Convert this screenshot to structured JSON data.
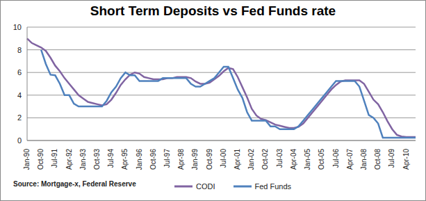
{
  "chart_data": {
    "type": "line",
    "title": "Short Term Deposits vs Fed Funds rate",
    "annotations": [
      "Source: Mortgage-x, Federal Reserve"
    ],
    "categories": [
      "Jan-90",
      null,
      null,
      "Oct-90",
      null,
      null,
      "Jul-91",
      null,
      null,
      "Apr-92",
      null,
      null,
      "Jan-93",
      null,
      null,
      "Oct-93",
      null,
      null,
      "Jul-94",
      null,
      null,
      "Apr-95",
      null,
      null,
      "Jan-96",
      null,
      null,
      "Oct-96",
      null,
      null,
      "Jul-97",
      null,
      null,
      "Apr-98",
      null,
      null,
      "Jan-99",
      null,
      null,
      "Oct-99",
      null,
      null,
      "Jul-00",
      null,
      null,
      "Apr-01",
      null,
      null,
      "Jan-02",
      null,
      null,
      "Oct-02",
      null,
      null,
      "Jul-03",
      null,
      null,
      "Apr-04",
      null,
      null,
      "Jan-05",
      null,
      null,
      "Oct-05",
      null,
      null,
      "Jul-06",
      null,
      null,
      "Apr-07",
      null,
      null,
      "Jan-08",
      null,
      null,
      "Oct-08",
      null,
      null,
      "Jul-09",
      null,
      null,
      "Apr-10",
      null,
      null
    ],
    "series": [
      {
        "name": "CODI",
        "color": "#8064a2",
        "values": [
          9.0,
          8.6,
          8.4,
          8.2,
          7.9,
          7.3,
          6.6,
          6.1,
          5.5,
          5.0,
          4.5,
          4.0,
          3.7,
          3.4,
          3.3,
          3.2,
          3.1,
          3.2,
          3.6,
          4.2,
          4.9,
          5.4,
          5.8,
          6.0,
          5.9,
          5.6,
          5.5,
          5.4,
          5.4,
          5.4,
          5.5,
          5.5,
          5.6,
          5.6,
          5.6,
          5.5,
          5.2,
          5.0,
          5.0,
          5.1,
          5.4,
          5.7,
          6.1,
          6.4,
          6.3,
          5.6,
          4.7,
          3.8,
          2.8,
          2.2,
          1.9,
          1.8,
          1.6,
          1.4,
          1.3,
          1.2,
          1.1,
          1.1,
          1.2,
          1.5,
          2.0,
          2.5,
          3.0,
          3.5,
          4.0,
          4.5,
          4.9,
          5.2,
          5.3,
          5.3,
          5.3,
          5.3,
          5.0,
          4.3,
          3.6,
          3.2,
          2.5,
          1.7,
          1.0,
          0.5,
          0.35,
          0.3,
          0.3,
          0.3
        ]
      },
      {
        "name": "Fed Funds",
        "color": "#4f81bd",
        "values": [
          null,
          null,
          null,
          8.0,
          6.75,
          5.8,
          5.75,
          5.0,
          4.0,
          4.0,
          3.25,
          3.0,
          3.0,
          3.0,
          3.0,
          3.0,
          3.0,
          3.5,
          4.25,
          4.75,
          5.5,
          6.0,
          5.75,
          5.75,
          5.25,
          5.25,
          5.25,
          5.25,
          5.25,
          5.5,
          5.5,
          5.5,
          5.5,
          5.5,
          5.5,
          5.0,
          4.75,
          4.75,
          5.0,
          5.25,
          5.5,
          6.0,
          6.5,
          6.5,
          5.5,
          4.5,
          3.75,
          2.5,
          1.75,
          1.75,
          1.75,
          1.75,
          1.25,
          1.25,
          1.0,
          1.0,
          1.0,
          1.0,
          1.25,
          1.75,
          2.25,
          2.75,
          3.25,
          3.75,
          4.25,
          4.75,
          5.25,
          5.25,
          5.25,
          5.25,
          5.25,
          4.75,
          3.5,
          2.25,
          2.0,
          1.5,
          0.25,
          0.25,
          0.25,
          0.25,
          0.25,
          0.25,
          0.25,
          0.25
        ]
      }
    ],
    "ylim": [
      0,
      10
    ],
    "yticks": [
      0,
      2,
      4,
      6,
      8,
      10
    ],
    "grid": true,
    "legend": "bottom"
  }
}
